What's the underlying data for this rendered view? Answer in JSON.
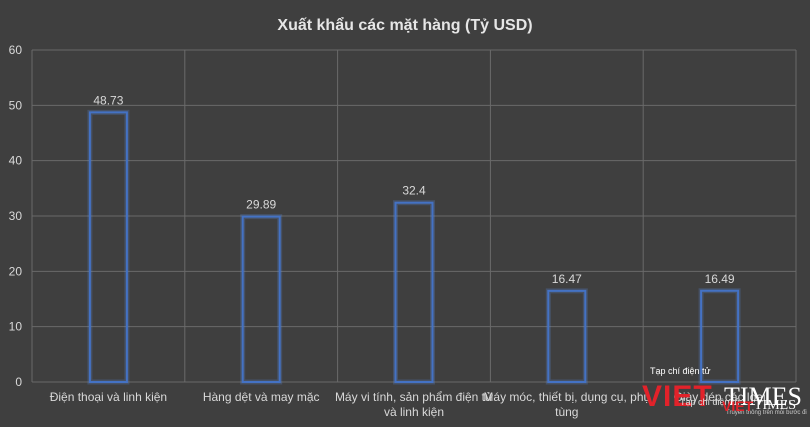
{
  "chart_data": {
    "type": "bar",
    "title": "Xuất khẩu các mặt hàng (Tỷ USD)",
    "categories": [
      [
        "Điện thoại và linh kiện"
      ],
      [
        "Hàng dệt và may mặc"
      ],
      [
        "Máy vi tính, sản phẩm điện tử",
        "và linh kiện"
      ],
      [
        "Máy móc, thiết bị, dụng cụ, phụ",
        "tùng"
      ],
      [
        "Giày dép các loại"
      ]
    ],
    "values": [
      48.73,
      29.89,
      32.4,
      16.47,
      16.49
    ],
    "data_labels": [
      "48.73",
      "29.89",
      "32.4",
      "16.47",
      "16.49"
    ],
    "ylim": [
      0,
      60
    ],
    "yticks": [
      0,
      10,
      20,
      30,
      40,
      50,
      60
    ],
    "grid": true,
    "colors": {
      "bar_outline": "#4472c4",
      "background": "#3f3f3f",
      "grid": "#6a6a6a",
      "text": "#d9d9d9"
    }
  },
  "watermark": {
    "tagline": "Tạp chí điện tử",
    "brand_part1": "VIET",
    "brand_part2": "TIMES",
    "slogan": "Truyền thông trên mỗi bước đi",
    "tagline_small": "Tạp chí điện tử",
    "brand_small_part1": "VIET",
    "brand_small_part2": "TIMES"
  }
}
